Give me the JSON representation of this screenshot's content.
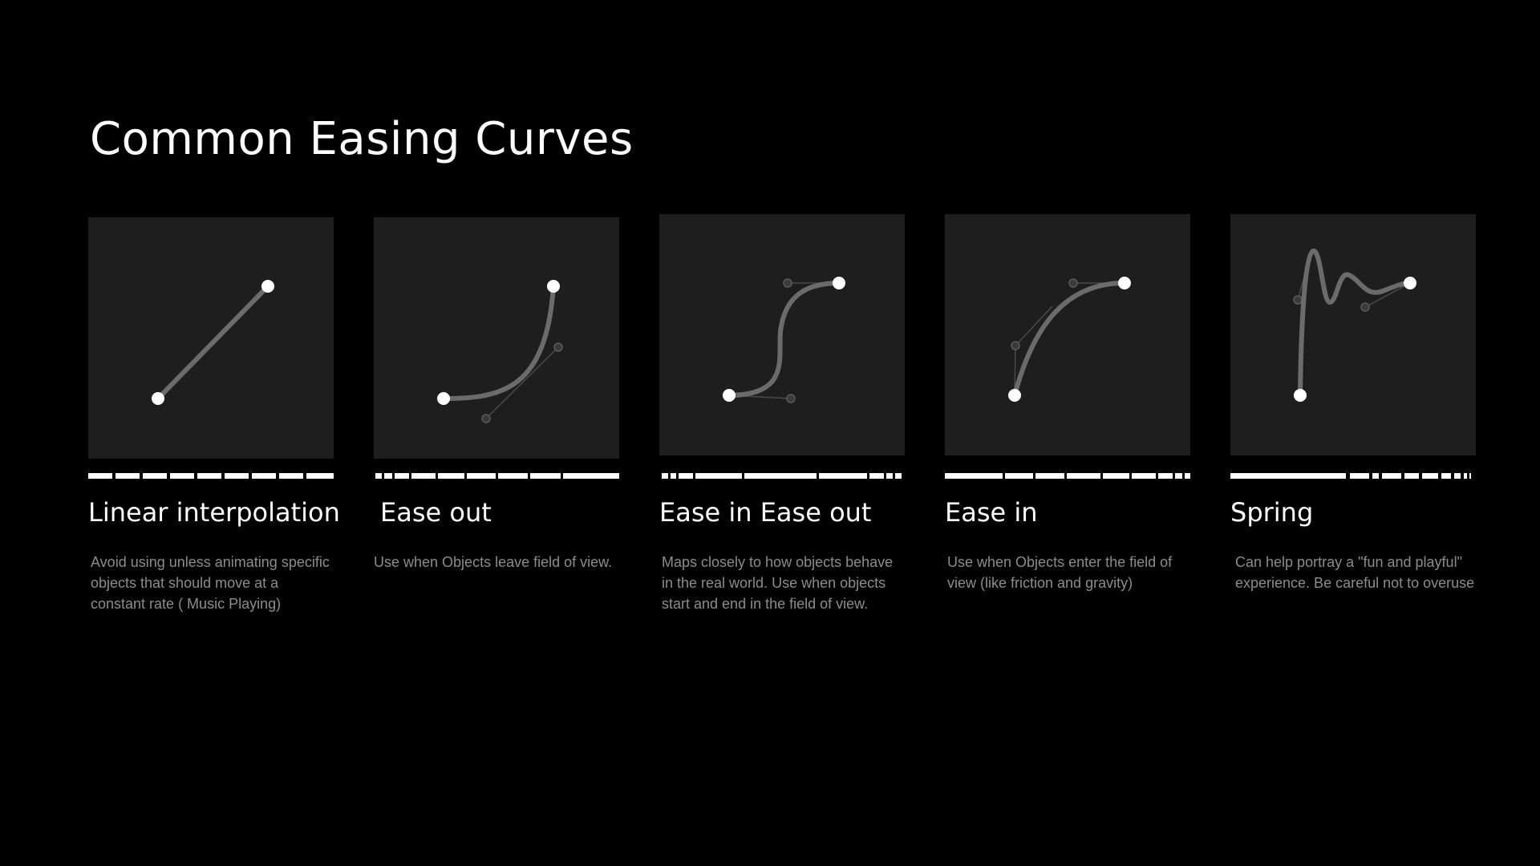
{
  "page": {
    "title": "Common Easing Curves"
  },
  "colors": {
    "background": "#000000",
    "panel": "#1e1e1e",
    "curve": "#6b6b6b",
    "handle": "#4a4a4a",
    "endpoint": "#ffffff",
    "title_text": "#ffffff",
    "description_text": "#8c8c8c"
  },
  "cards": [
    {
      "id": "linear",
      "title": "Linear interpolation",
      "description": "Avoid using unless animating specific objects that should move at a constant rate ( Music Playing)"
    },
    {
      "id": "ease-out",
      "title": "Ease out",
      "description": "Use when Objects leave field of view."
    },
    {
      "id": "ease-in-out",
      "title": "Ease in Ease out",
      "description": "Maps closely to how objects behave in the real world. Use when objects start and end in the field of view."
    },
    {
      "id": "ease-in",
      "title": "Ease in",
      "description": "Use when Objects enter the field of view (like friction and gravity)"
    },
    {
      "id": "spring",
      "title": "Spring",
      "description": "Can help portray a \"fun and playful\" experience. Be careful not to overuse"
    }
  ]
}
